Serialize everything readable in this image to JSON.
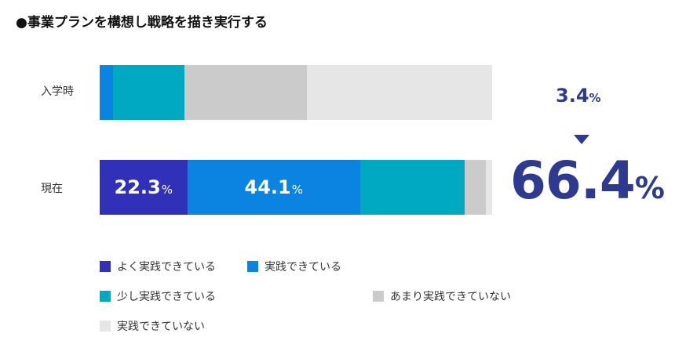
{
  "chart_data": {
    "type": "bar",
    "orientation": "horizontal",
    "stacked": true,
    "title": "●事業プランを構想し戦略を描き実行する",
    "categories": [
      "入学時",
      "現在"
    ],
    "series": [
      {
        "name": "よく実践できている",
        "color": "#3030b8",
        "values": [
          0,
          22.3
        ]
      },
      {
        "name": "実践できている",
        "color": "#0a84e0",
        "values": [
          3.4,
          44.1
        ]
      },
      {
        "name": "少し実践できている",
        "color": "#00a9c2",
        "values": [
          18.2,
          26.5
        ]
      },
      {
        "name": "あまり実践できていない",
        "color": "#cbcbcb",
        "values": [
          31.2,
          5.5
        ]
      },
      {
        "name": "実践できていない",
        "color": "#e6e6e6",
        "values": [
          47.2,
          1.6
        ]
      }
    ],
    "data_labels": [
      {
        "category": "現在",
        "series": "よく実践できている",
        "text": "22.3",
        "unit": "%"
      },
      {
        "category": "現在",
        "series": "実践できている",
        "text": "44.1",
        "unit": "%"
      }
    ],
    "annotation": {
      "before": "3.4",
      "after": "66.4",
      "unit": "%"
    },
    "xlim": [
      0,
      100
    ],
    "legend": "bottom"
  }
}
